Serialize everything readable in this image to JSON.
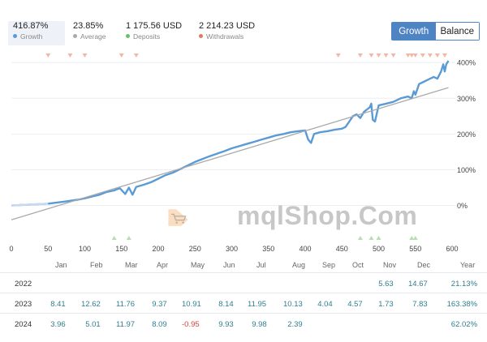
{
  "stats": [
    {
      "value": "416.87%",
      "label": "Growth",
      "dot": "#5b9bd5",
      "active": true
    },
    {
      "value": "23.85%",
      "label": "Average",
      "dot": "#aaaaaa",
      "active": false
    },
    {
      "value": "1 175.56 USD",
      "label": "Deposits",
      "dot": "#6abf69",
      "active": false
    },
    {
      "value": "2 214.23 USD",
      "label": "Withdrawals",
      "dot": "#e07a5f",
      "active": false
    }
  ],
  "toggle": {
    "growth": "Growth",
    "balance": "Balance"
  },
  "chart_data": {
    "type": "line",
    "x_ticks": [
      "0",
      "50",
      "100",
      "150",
      "200",
      "250",
      "300",
      "350",
      "400",
      "450",
      "500",
      "550",
      "600"
    ],
    "y_ticks": [
      "0%",
      "100%",
      "200%",
      "300%",
      "400%"
    ],
    "xlim": [
      0,
      600
    ],
    "ylim": [
      -60,
      430
    ],
    "series": [
      {
        "color": "#5b9bd5",
        "x": [
          0,
          20,
          40,
          50,
          70,
          90,
          100,
          110,
          120,
          130,
          140,
          143,
          148,
          150,
          155,
          160,
          165,
          170,
          180,
          190,
          200,
          210,
          220,
          230,
          240,
          250,
          260,
          270,
          280,
          290,
          300,
          310,
          320,
          330,
          340,
          350,
          360,
          370,
          380,
          390,
          400,
          404,
          408,
          412,
          420,
          430,
          440,
          450,
          455,
          460,
          465,
          470,
          475,
          480,
          485,
          488,
          490,
          492,
          495,
          500,
          510,
          520,
          530,
          540,
          545,
          548,
          550,
          555,
          560,
          565,
          570,
          575,
          580,
          585,
          588,
          590,
          592,
          595
        ],
        "y": [
          0,
          2,
          4,
          5,
          10,
          16,
          20,
          25,
          30,
          38,
          42,
          45,
          48,
          43,
          32,
          50,
          30,
          52,
          58,
          65,
          75,
          85,
          92,
          102,
          112,
          122,
          130,
          138,
          145,
          152,
          160,
          166,
          172,
          178,
          184,
          190,
          196,
          200,
          205,
          208,
          210,
          185,
          175,
          200,
          205,
          208,
          212,
          215,
          220,
          235,
          250,
          255,
          245,
          262,
          270,
          275,
          285,
          240,
          235,
          280,
          285,
          290,
          300,
          305,
          300,
          320,
          310,
          340,
          345,
          350,
          355,
          360,
          355,
          375,
          395,
          375,
          395,
          405
        ]
      },
      {
        "color": "#aaaaaa",
        "x": [
          0,
          595
        ],
        "y": [
          -40,
          330
        ]
      }
    ],
    "deposit_markers_x": [
      140,
      160,
      475,
      490,
      500,
      545,
      550
    ],
    "withdrawal_markers_x": [
      50,
      80,
      100,
      150,
      170,
      445,
      475,
      490,
      500,
      510,
      520,
      540,
      545,
      550,
      560,
      570,
      580,
      590
    ]
  },
  "watermark": "mqlShop.Com",
  "months": {
    "headers": [
      "Jan",
      "Feb",
      "Mar",
      "Apr",
      "May",
      "Jun",
      "Jul",
      "Aug",
      "Sep",
      "Oct",
      "Nov",
      "Dec",
      "Year"
    ],
    "rows": [
      {
        "year": "2022",
        "values": [
          "",
          "",
          "",
          "",
          "",
          "",
          "",
          "",
          "",
          "",
          "5.63",
          "14.67",
          "21.13%"
        ]
      },
      {
        "year": "2023",
        "values": [
          "8.41",
          "12.62",
          "11.76",
          "9.37",
          "10.91",
          "8.14",
          "11.95",
          "10.13",
          "4.04",
          "4.57",
          "1.73",
          "7.83",
          "163.38%"
        ]
      },
      {
        "year": "2024",
        "values": [
          "3.96",
          "5.01",
          "11.97",
          "8.09",
          "-0.95",
          "9.93",
          "9.98",
          "2.39",
          "",
          "",
          "",
          "",
          "62.02%"
        ]
      }
    ]
  }
}
